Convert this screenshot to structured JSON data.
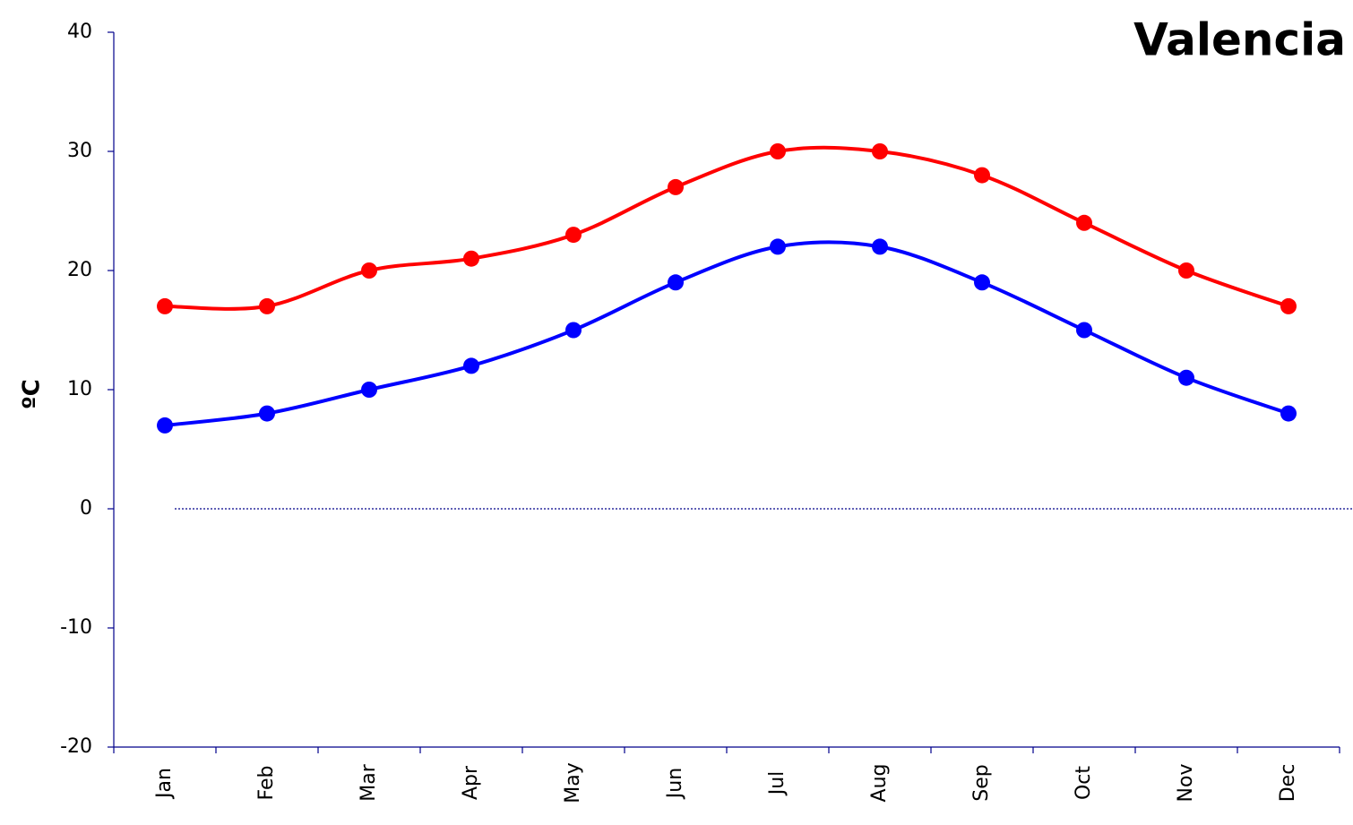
{
  "chart_data": {
    "type": "line",
    "title": "Valencia",
    "y_label": "ºC",
    "categories": [
      "Jan",
      "Feb",
      "Mar",
      "Apr",
      "May",
      "Jun",
      "Jul",
      "Aug",
      "Sep",
      "Oct",
      "Nov",
      "Dec"
    ],
    "series": [
      {
        "color": "#ff0000",
        "values": [
          17,
          17,
          20,
          21,
          23,
          27,
          30,
          30,
          28,
          24,
          20,
          17
        ]
      },
      {
        "color": "#0000ff",
        "values": [
          7,
          8,
          10,
          12,
          15,
          19,
          22,
          22,
          19,
          15,
          11,
          8
        ]
      }
    ],
    "ylim": [
      -20,
      40
    ],
    "yticks": [
      -20,
      -10,
      0,
      10,
      20,
      30,
      40
    ],
    "zero_line": true,
    "smooth": true
  }
}
